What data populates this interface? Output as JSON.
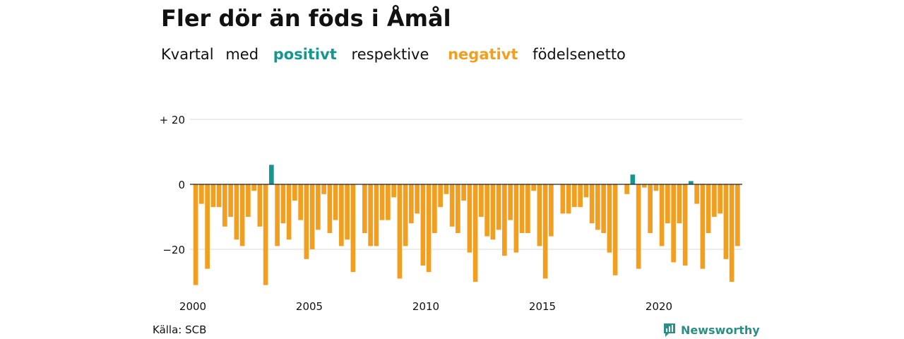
{
  "header": {
    "title": "Fler dör än föds i Åmål",
    "subtitle_parts": [
      "Kvartal",
      "med",
      "positivt",
      "respektive",
      "negativt",
      "födelsenetto"
    ]
  },
  "footer": {
    "source": "Källa: SCB",
    "brand": "Newsworthy"
  },
  "colors": {
    "positive": "#13978f",
    "negative": "#f29e1f",
    "grid": "#d9d9d9",
    "zero_line": "#222222"
  },
  "chart_data": {
    "type": "bar",
    "title": "Fler dör än föds i Åmål",
    "subtitle": "Kvartal med positivt respektive negativt födelsenetto",
    "x_start": 2000,
    "x_end": 2023.75,
    "quarters_per_year": 4,
    "x_ticks": [
      2000,
      2005,
      2010,
      2015,
      2020
    ],
    "x_tick_labels": [
      "2000",
      "2005",
      "2010",
      "2015",
      "2020"
    ],
    "y_ticks": [
      20,
      0,
      -20
    ],
    "y_tick_labels": [
      "+ 20",
      "0",
      "−20"
    ],
    "ylim": [
      -32,
      20
    ],
    "grid": true,
    "values": [
      -31,
      -6,
      -26,
      -7,
      -7,
      -13,
      -10,
      -17,
      -19,
      -10,
      -2,
      -13,
      -31,
      6,
      -19,
      -12,
      -17,
      -5,
      -11,
      -23,
      -20,
      -14,
      -3,
      -15,
      -11,
      -19,
      -17,
      -27,
      0,
      -15,
      -19,
      -19,
      -11,
      -11,
      -4,
      -29,
      -19,
      -12,
      -9,
      -25,
      -27,
      -15,
      -7,
      -3,
      -13,
      -15,
      -5,
      -21,
      -30,
      -10,
      -16,
      -17,
      -14,
      -22,
      -11,
      -21,
      -15,
      -15,
      -2,
      -19,
      -29,
      -16,
      0,
      -9,
      -9,
      -7,
      -7,
      -4,
      -12,
      -14,
      -15,
      -21,
      -28,
      0,
      -3,
      3,
      -26,
      -1,
      -15,
      -2,
      -19,
      -12,
      -24,
      -12,
      -25,
      1,
      -6,
      -26,
      -15,
      -10,
      -9,
      -23,
      -30,
      -19
    ]
  }
}
